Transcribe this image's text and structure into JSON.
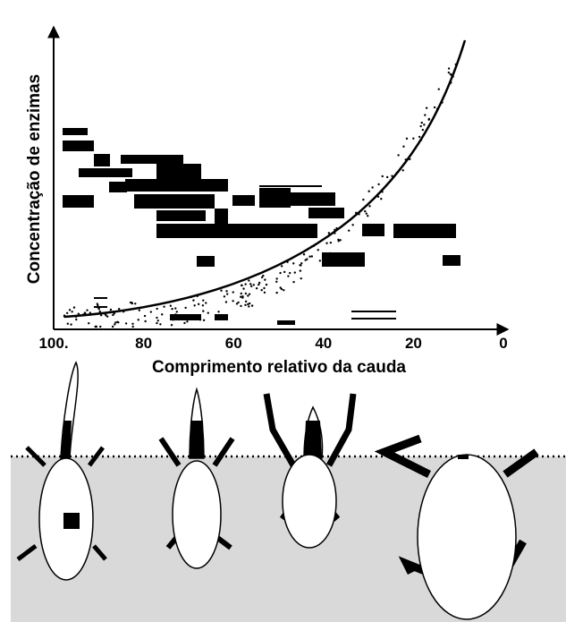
{
  "y_axis": {
    "label": "Concentração de enzimas"
  },
  "x_axis": {
    "label": "Comprimento relativo da cauda",
    "ticks": [
      "100.",
      "80",
      "60",
      "40",
      "20",
      "0"
    ]
  }
}
